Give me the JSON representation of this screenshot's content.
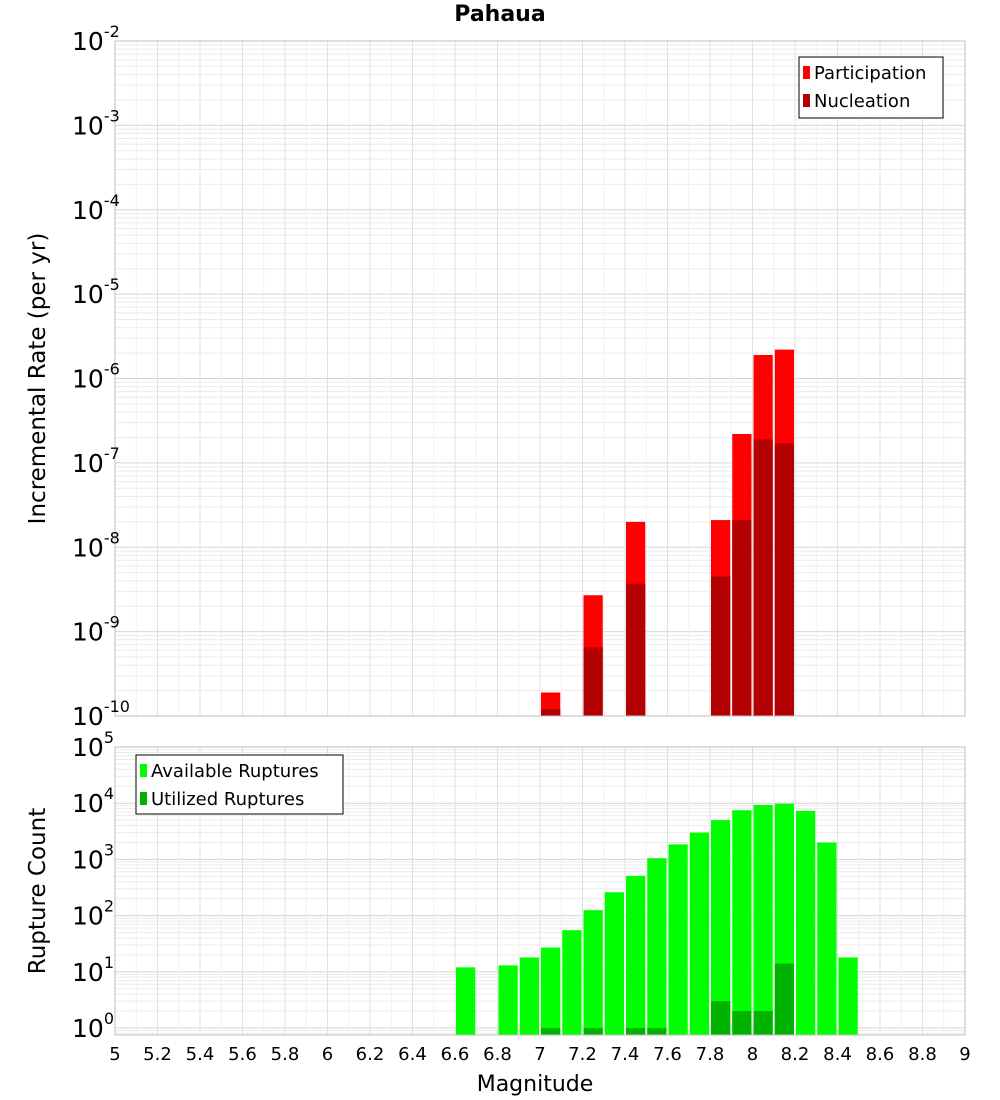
{
  "title": "Pahaua",
  "chart_data": [
    {
      "type": "bar",
      "ylabel": "Incremental Rate (per yr)",
      "xlabel": "",
      "xlim": [
        5,
        9
      ],
      "ylim": [
        1e-10,
        0.01
      ],
      "yscale": "log",
      "grid": true,
      "legend_position": "top-right",
      "bar_width": 0.1,
      "y_ticks": [
        {
          "base": "10",
          "exp": "-10",
          "value": 1e-10
        },
        {
          "base": "10",
          "exp": "-9",
          "value": 1e-09
        },
        {
          "base": "10",
          "exp": "-8",
          "value": 1e-08
        },
        {
          "base": "10",
          "exp": "-7",
          "value": 1e-07
        },
        {
          "base": "10",
          "exp": "-6",
          "value": 1e-06
        },
        {
          "base": "10",
          "exp": "-5",
          "value": 1e-05
        },
        {
          "base": "10",
          "exp": "-4",
          "value": 0.0001
        },
        {
          "base": "10",
          "exp": "-3",
          "value": 0.001
        },
        {
          "base": "10",
          "exp": "-2",
          "value": 0.01
        }
      ],
      "series": [
        {
          "name": "Participation",
          "color": "#ff0000",
          "x": [
            7.05,
            7.25,
            7.45,
            7.85,
            7.95,
            8.05,
            8.15
          ],
          "values": [
            1.9e-10,
            2.7e-09,
            2e-08,
            2.1e-08,
            2.2e-07,
            1.9e-06,
            2.2e-06
          ]
        },
        {
          "name": "Nucleation",
          "color": "#b30000",
          "x": [
            7.05,
            7.25,
            7.45,
            7.85,
            7.95,
            8.05,
            8.15
          ],
          "values": [
            1.2e-10,
            6.5e-10,
            3.7e-09,
            4.5e-09,
            2.1e-08,
            1.9e-07,
            1.7e-07
          ]
        }
      ]
    },
    {
      "type": "bar",
      "ylabel": "Rupture Count",
      "xlabel": "Magnitude",
      "xlim": [
        5,
        9
      ],
      "ylim": [
        0.75,
        100000.0
      ],
      "yscale": "log",
      "grid": true,
      "legend_position": "top-left",
      "bar_width": 0.1,
      "x_ticks": [
        "5",
        "5.2",
        "5.4",
        "5.6",
        "5.8",
        "6",
        "6.2",
        "6.4",
        "6.6",
        "6.8",
        "7",
        "7.2",
        "7.4",
        "7.6",
        "7.8",
        "8",
        "8.2",
        "8.4",
        "8.6",
        "8.8",
        "9"
      ],
      "y_ticks": [
        {
          "base": "10",
          "exp": "0",
          "value": 1
        },
        {
          "base": "10",
          "exp": "1",
          "value": 10
        },
        {
          "base": "10",
          "exp": "2",
          "value": 100
        },
        {
          "base": "10",
          "exp": "3",
          "value": 1000
        },
        {
          "base": "10",
          "exp": "4",
          "value": 10000
        },
        {
          "base": "10",
          "exp": "5",
          "value": 100000
        }
      ],
      "series": [
        {
          "name": "Available Ruptures",
          "color": "#00ff00",
          "x": [
            6.65,
            6.85,
            6.95,
            7.05,
            7.15,
            7.25,
            7.35,
            7.45,
            7.55,
            7.65,
            7.75,
            7.85,
            7.95,
            8.05,
            8.15,
            8.25,
            8.35,
            8.45
          ],
          "values": [
            12,
            13,
            18,
            27,
            55,
            125,
            260,
            510,
            1050,
            1850,
            3000,
            5000,
            7500,
            9300,
            9800,
            7300,
            2000,
            18
          ]
        },
        {
          "name": "Utilized Ruptures",
          "color": "#00b300",
          "x": [
            7.05,
            7.25,
            7.45,
            7.55,
            7.85,
            7.95,
            8.05,
            8.15
          ],
          "values": [
            1,
            1,
            1,
            1,
            3,
            2,
            2,
            14
          ]
        }
      ]
    }
  ]
}
